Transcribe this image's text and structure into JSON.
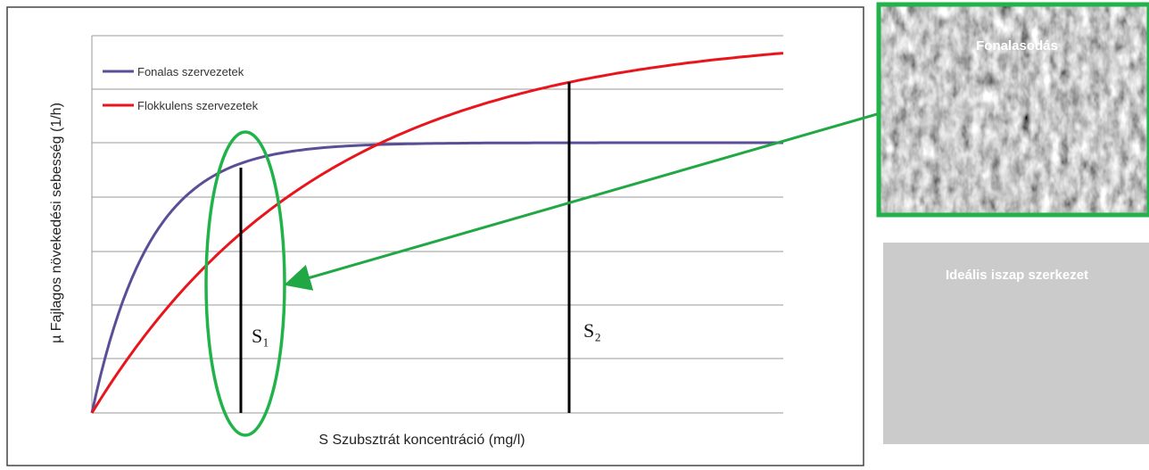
{
  "diagram": {
    "y_axis_label": "µ Fajlagos növekedési sebesség (1/h)",
    "x_axis_label": "S Szubsztrát koncentráció (mg/l)",
    "legend": [
      "Fonalas szervezetek",
      "Flokkulens szervezetek"
    ],
    "markers": [
      "S₁",
      "S₂"
    ],
    "photos": [
      "Fonalasodás",
      "Ideális iszap szerkezet"
    ]
  }
}
